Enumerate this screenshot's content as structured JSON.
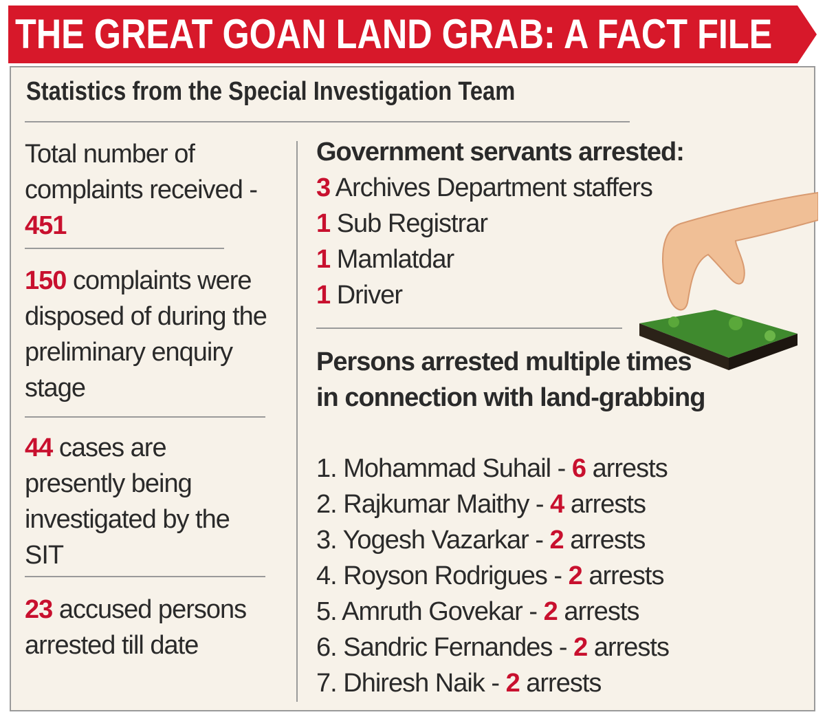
{
  "header": {
    "title": "THE GREAT GOAN LAND GRAB: A FACT FILE",
    "subtitle": "Statistics from the Special Investigation Team"
  },
  "stats": [
    {
      "before": "Total number of complaints received -",
      "number": 451,
      "after": ""
    },
    {
      "before": "",
      "number": 150,
      "after": "complaints were disposed of during the preliminary enquiry stage"
    },
    {
      "before": "",
      "number": 44,
      "after": "cases are presently being investigated by the SIT"
    },
    {
      "before": "",
      "number": 23,
      "after": "accused persons arrested till date"
    }
  ],
  "government": {
    "heading": "Government servants arrested:",
    "items": [
      {
        "count": 3,
        "label": "Archives Department staffers"
      },
      {
        "count": 1,
        "label": "Sub Registrar"
      },
      {
        "count": 1,
        "label": "Mamlatdar"
      },
      {
        "count": 1,
        "label": "Driver"
      }
    ]
  },
  "repeat": {
    "heading": "Persons arrested multiple times in connection with land-grabbing",
    "items": [
      {
        "index": "1.",
        "name": "Mohammad Suhail -",
        "count": 6,
        "unit": "arrests"
      },
      {
        "index": "2.",
        "name": "Rajkumar Maithy -",
        "count": 4,
        "unit": "arrests"
      },
      {
        "index": "3.",
        "name": "Yogesh Vazarkar -",
        "count": 2,
        "unit": "arrests"
      },
      {
        "index": "4.",
        "name": "Royson Rodrigues -",
        "count": 2,
        "unit": "arrests"
      },
      {
        "index": "5.",
        "name": "Amruth Govekar -",
        "count": 2,
        "unit": "arrests"
      },
      {
        "index": "6.",
        "name": "Sandric Fernandes -",
        "count": 2,
        "unit": "arrests"
      },
      {
        "index": "7.",
        "name": "Dhiresh Naik -",
        "count": 2,
        "unit": "arrests"
      }
    ]
  }
}
